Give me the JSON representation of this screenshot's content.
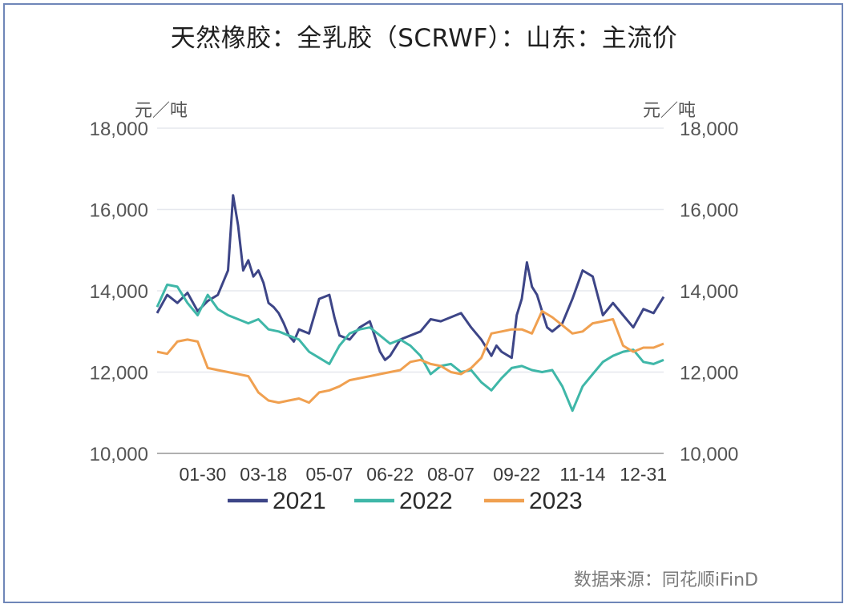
{
  "title": "天然橡胶：全乳胶（SCRWF）：山东：主流价",
  "unit_left": "元／吨",
  "unit_right": "元／吨",
  "source": "数据来源：同花顺iFinD",
  "colors": {
    "s2021": "#3d4587",
    "s2022": "#3fb7a8",
    "s2023": "#f0a050",
    "grid": "#e6e8ee",
    "axis": "#b0b0b0",
    "frame": "#6f86b8"
  },
  "chart_data": {
    "type": "line",
    "title": "天然橡胶：全乳胶（SCRWF）：山东：主流价",
    "ylabel": "元／吨",
    "ylim": [
      10000,
      18000
    ],
    "yticks": [
      10000,
      12000,
      14000,
      16000,
      18000
    ],
    "ytick_labels": [
      "10,000",
      "12,000",
      "14,000",
      "16,000",
      "18,000"
    ],
    "x_tick_labels": [
      "01-30",
      "03-18",
      "05-07",
      "06-22",
      "08-07",
      "09-22",
      "11-14",
      "12-31"
    ],
    "x_tick_positions": [
      0.09,
      0.21,
      0.34,
      0.46,
      0.58,
      0.71,
      0.84,
      0.96
    ],
    "grid": "horizontal",
    "legend_position": "bottom",
    "series": [
      {
        "name": "2021",
        "color_key": "s2021",
        "x": [
          0.0,
          0.02,
          0.04,
          0.06,
          0.08,
          0.1,
          0.12,
          0.14,
          0.15,
          0.16,
          0.17,
          0.18,
          0.19,
          0.2,
          0.21,
          0.22,
          0.23,
          0.24,
          0.25,
          0.26,
          0.27,
          0.28,
          0.3,
          0.32,
          0.34,
          0.35,
          0.36,
          0.38,
          0.4,
          0.42,
          0.44,
          0.45,
          0.46,
          0.48,
          0.5,
          0.52,
          0.54,
          0.56,
          0.58,
          0.6,
          0.62,
          0.64,
          0.65,
          0.66,
          0.67,
          0.68,
          0.7,
          0.71,
          0.72,
          0.73,
          0.74,
          0.75,
          0.76,
          0.77,
          0.78,
          0.8,
          0.82,
          0.84,
          0.86,
          0.88,
          0.9,
          0.92,
          0.94,
          0.96,
          0.98,
          1.0
        ],
        "values": [
          13450,
          13900,
          13700,
          13950,
          13500,
          13750,
          13900,
          14500,
          16350,
          15600,
          14500,
          14750,
          14350,
          14500,
          14200,
          13700,
          13600,
          13450,
          13200,
          12900,
          12750,
          13050,
          12950,
          13800,
          13900,
          13350,
          12900,
          12800,
          13100,
          13250,
          12500,
          12300,
          12400,
          12800,
          12900,
          13000,
          13300,
          13250,
          13350,
          13450,
          13100,
          12800,
          12600,
          12400,
          12650,
          12500,
          12350,
          13400,
          13800,
          14700,
          14100,
          13900,
          13500,
          13100,
          13000,
          13200,
          13800,
          14500,
          14350,
          13400,
          13700,
          13400,
          13100,
          13550,
          13450,
          13850
        ]
      },
      {
        "name": "2022",
        "color_key": "s2022",
        "x": [
          0.0,
          0.02,
          0.04,
          0.06,
          0.08,
          0.1,
          0.12,
          0.14,
          0.16,
          0.18,
          0.2,
          0.22,
          0.24,
          0.26,
          0.28,
          0.3,
          0.32,
          0.34,
          0.36,
          0.38,
          0.4,
          0.42,
          0.44,
          0.46,
          0.48,
          0.5,
          0.52,
          0.54,
          0.56,
          0.58,
          0.6,
          0.62,
          0.64,
          0.66,
          0.68,
          0.7,
          0.72,
          0.74,
          0.76,
          0.78,
          0.8,
          0.82,
          0.84,
          0.86,
          0.88,
          0.9,
          0.92,
          0.94,
          0.96,
          0.98,
          1.0
        ],
        "values": [
          13600,
          14150,
          14100,
          13700,
          13400,
          13900,
          13550,
          13400,
          13300,
          13200,
          13300,
          13050,
          13000,
          12900,
          12800,
          12500,
          12350,
          12200,
          12650,
          12950,
          13050,
          13100,
          12900,
          12700,
          12800,
          12650,
          12400,
          11950,
          12150,
          12200,
          12000,
          12050,
          11750,
          11550,
          11850,
          12100,
          12150,
          12050,
          12000,
          12050,
          11650,
          11050,
          11650,
          11950,
          12250,
          12400,
          12500,
          12550,
          12250,
          12200,
          12300
        ]
      },
      {
        "name": "2023",
        "color_key": "s2023",
        "x": [
          0.0,
          0.02,
          0.04,
          0.06,
          0.08,
          0.1,
          0.12,
          0.14,
          0.16,
          0.18,
          0.2,
          0.22,
          0.24,
          0.26,
          0.28,
          0.3,
          0.32,
          0.34,
          0.36,
          0.38,
          0.4,
          0.42,
          0.44,
          0.46,
          0.48,
          0.5,
          0.52,
          0.54,
          0.56,
          0.58,
          0.6,
          0.62,
          0.64,
          0.66,
          0.68,
          0.7,
          0.72,
          0.74,
          0.76,
          0.78,
          0.8,
          0.82,
          0.84,
          0.86,
          0.88,
          0.9,
          0.92,
          0.94,
          0.96,
          0.98,
          1.0
        ],
        "values": [
          12500,
          12450,
          12750,
          12800,
          12750,
          12100,
          12050,
          12000,
          11950,
          11900,
          11500,
          11300,
          11250,
          11300,
          11350,
          11250,
          11500,
          11550,
          11650,
          11800,
          11850,
          11900,
          11950,
          12000,
          12050,
          12250,
          12300,
          12200,
          12150,
          12000,
          11950,
          12100,
          12350,
          12950,
          13000,
          13050,
          13050,
          12950,
          13500,
          13350,
          13150,
          12950,
          13000,
          13200,
          13250,
          13300,
          12650,
          12500,
          12600,
          12600,
          12700
        ]
      }
    ]
  }
}
